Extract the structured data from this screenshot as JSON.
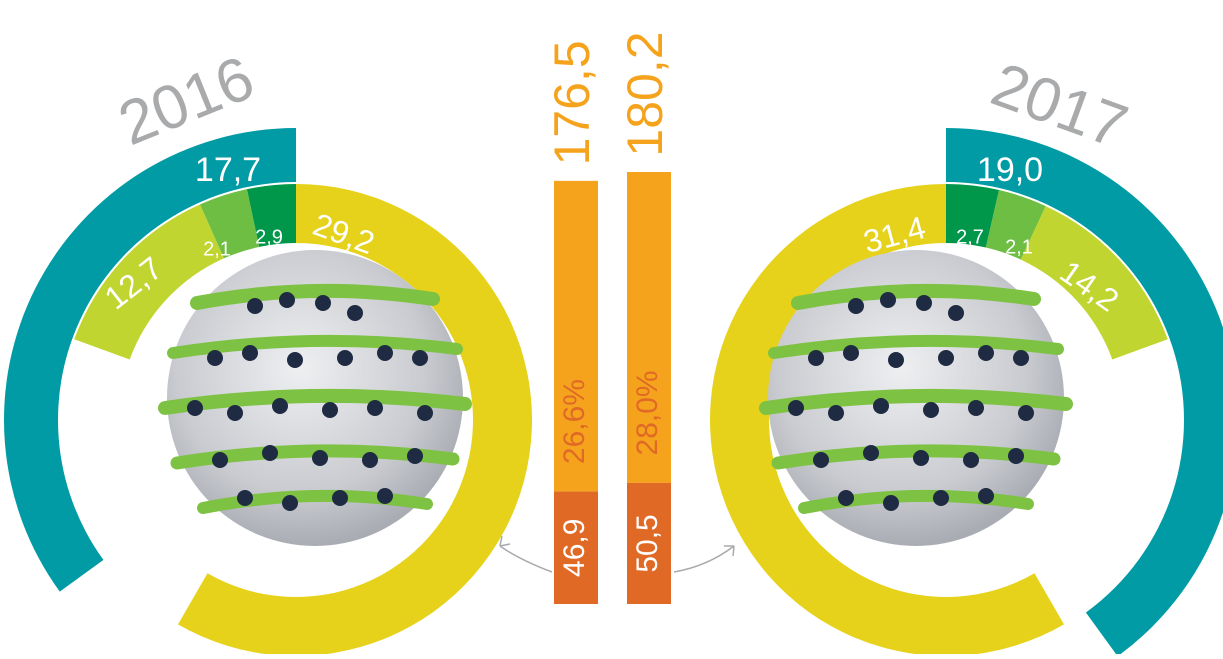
{
  "colors": {
    "teal": "#009ba4",
    "light_green": "#c0d52f",
    "mid_green": "#6fbe44",
    "dark_green": "#00974a",
    "yellow": "#e6d21a",
    "orange": "#f5a31d",
    "dark_orange": "#e06a25",
    "gray_text": "#a9aaac",
    "arrow_gray": "#a9aaac"
  },
  "chart_data": [
    {
      "type": "pie",
      "year": "2016",
      "outer_ring": [
        {
          "value": 17.7,
          "label": "17,7",
          "color_key": "teal"
        }
      ],
      "inner_ring": [
        {
          "value": 12.7,
          "label": "12,7",
          "color_key": "light_green"
        },
        {
          "value": 2.1,
          "label": "2,1",
          "color_key": "mid_green"
        },
        {
          "value": 2.9,
          "label": "2,9",
          "color_key": "dark_green"
        },
        {
          "value": 29.2,
          "label": "29,2",
          "color_key": "yellow"
        }
      ]
    },
    {
      "type": "pie",
      "year": "2017",
      "outer_ring": [
        {
          "value": 19.0,
          "label": "19,0",
          "color_key": "teal"
        }
      ],
      "inner_ring": [
        {
          "value": 31.4,
          "label": "31,4",
          "color_key": "yellow"
        },
        {
          "value": 2.7,
          "label": "2,7",
          "color_key": "dark_green"
        },
        {
          "value": 2.1,
          "label": "2,1",
          "color_key": "mid_green"
        },
        {
          "value": 14.2,
          "label": "14,2",
          "color_key": "light_green"
        }
      ]
    },
    {
      "type": "bar",
      "stacked": true,
      "categories": [
        "2016",
        "2017"
      ],
      "totals": [
        176.5,
        180.2
      ],
      "total_labels": [
        "176,5",
        "180,2"
      ],
      "series": [
        {
          "values": [
            46.9,
            50.5
          ],
          "labels": [
            "46,9",
            "50,5"
          ],
          "color_key": "dark_orange"
        },
        {
          "values": [
            129.6,
            129.7
          ],
          "color_key": "orange"
        }
      ],
      "share_labels": [
        "26,6%",
        "28,0%"
      ]
    }
  ]
}
